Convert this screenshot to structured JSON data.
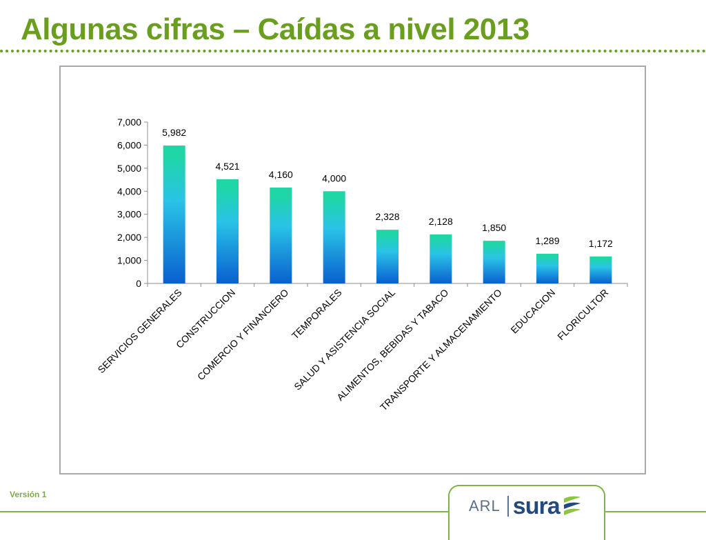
{
  "slide": {
    "title": "Algunas cifras – Caídas a nivel 2013",
    "version_label": "Versión 1"
  },
  "brand": {
    "prefix": "ARL",
    "name": "sura",
    "mark_icon": "sura-wing-logo",
    "colors": {
      "primary": "#23497e",
      "accent": "#8cc63f",
      "title": "#6a9e1f"
    }
  },
  "chart_data": {
    "type": "bar",
    "categories": [
      "SERVICIOS GENERALES",
      "CONSTRUCCION",
      "COMERCIO Y FINANCIERO",
      "TEMPORALES",
      "SALUD Y ASISTENCIA SOCIAL",
      "ALIMENTOS, BEBIDAS Y TABACO",
      "TRANSPORTE Y ALMACENAMIENTO",
      "EDUCACION",
      "FLORICULTOR"
    ],
    "values": [
      5982,
      4521,
      4160,
      4000,
      2328,
      2128,
      1850,
      1289,
      1172
    ],
    "value_labels": [
      "5,982",
      "4,521",
      "4,160",
      "4,000",
      "2,328",
      "2,128",
      "1,850",
      "1,289",
      "1,172"
    ],
    "title": "",
    "xlabel": "",
    "ylabel": "",
    "ylim": [
      0,
      7000
    ],
    "yticks": [
      0,
      1000,
      2000,
      3000,
      4000,
      5000,
      6000,
      7000
    ],
    "ytick_labels": [
      "0",
      "1,000",
      "2,000",
      "3,000",
      "4,000",
      "5,000",
      "6,000",
      "7,000"
    ],
    "grid": false,
    "legend": "none",
    "bar_gradient": {
      "top": "#1fd6a6",
      "middle": "#29c4e6",
      "bottom": "#0a5fd0"
    }
  }
}
